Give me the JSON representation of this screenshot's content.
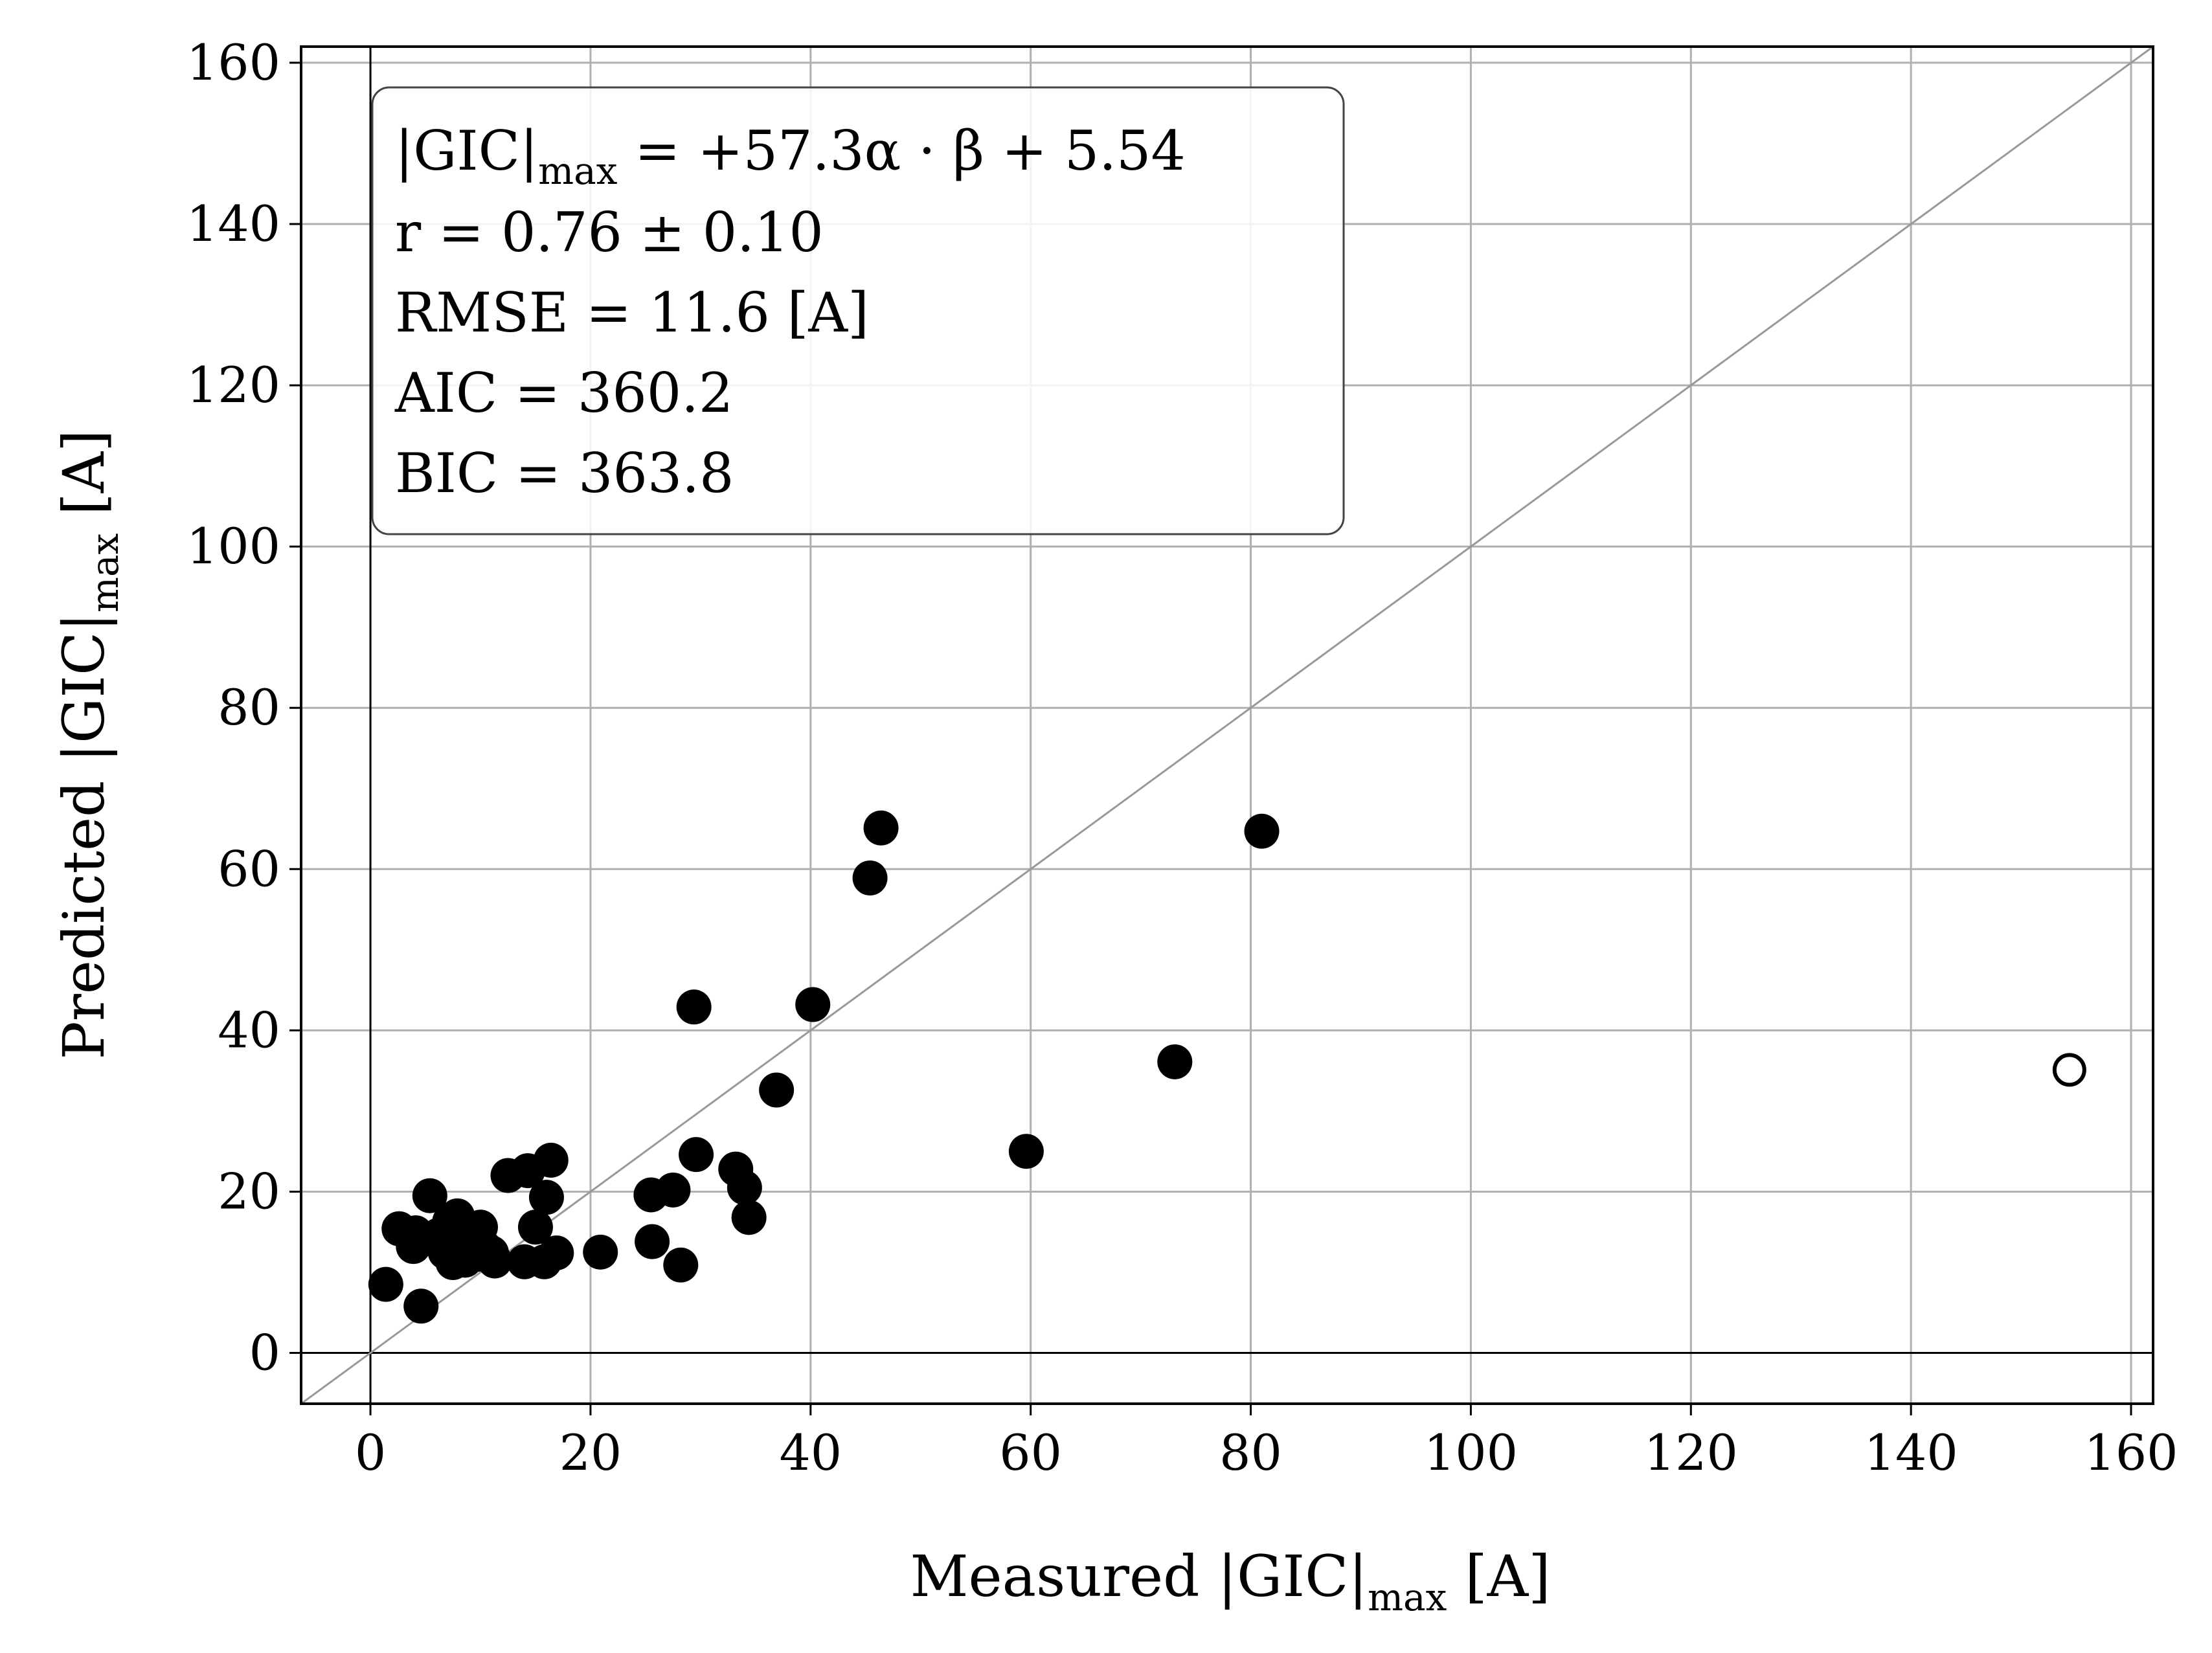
{
  "chart_data": {
    "type": "scatter",
    "xlabel": "Measured |GIC|max [A]",
    "ylabel": "Predicted |GIC|max [A]",
    "xlim": [
      -6.3,
      162
    ],
    "ylim": [
      -6.3,
      162
    ],
    "xticks": [
      "0",
      "20",
      "40",
      "60",
      "80",
      "100",
      "120",
      "140",
      "160"
    ],
    "yticks": [
      "0",
      "20",
      "40",
      "60",
      "80",
      "100",
      "120",
      "140",
      "160"
    ],
    "grid": true,
    "reference_line": "y = x",
    "zero_lines": true,
    "stats_box": {
      "equation": "|GIC|max = +57.3α · β + 5.54",
      "r": "r = 0.76 ± 0.10",
      "rmse": "RMSE = 11.6 [A]",
      "aic": "AIC = 360.2",
      "bic": "BIC = 363.8"
    },
    "series": [
      {
        "marker": "filled-circle",
        "color": "#000000",
        "points": [
          [
            1.4,
            8.5
          ],
          [
            2.6,
            15.4
          ],
          [
            3.9,
            13.2
          ],
          [
            4.1,
            14.9
          ],
          [
            4.6,
            5.8
          ],
          [
            5.4,
            19.5
          ],
          [
            6.2,
            14.6
          ],
          [
            6.8,
            12.5
          ],
          [
            7.2,
            16.3
          ],
          [
            7.5,
            11.2
          ],
          [
            7.9,
            17.0
          ],
          [
            8.3,
            13.8
          ],
          [
            8.6,
            11.5
          ],
          [
            9.2,
            14.7
          ],
          [
            9.6,
            12.2
          ],
          [
            10.0,
            15.6
          ],
          [
            10.4,
            13.0
          ],
          [
            11.0,
            12.4
          ],
          [
            11.3,
            11.4
          ],
          [
            12.5,
            22.0
          ],
          [
            14.0,
            11.3
          ],
          [
            14.3,
            22.6
          ],
          [
            15.0,
            15.6
          ],
          [
            15.8,
            11.3
          ],
          [
            16.0,
            19.3
          ],
          [
            16.4,
            23.9
          ],
          [
            16.9,
            12.4
          ],
          [
            20.9,
            12.5
          ],
          [
            25.5,
            19.6
          ],
          [
            25.6,
            13.8
          ],
          [
            27.5,
            20.2
          ],
          [
            28.2,
            10.9
          ],
          [
            29.4,
            42.9
          ],
          [
            29.6,
            24.6
          ],
          [
            33.2,
            22.8
          ],
          [
            34.0,
            20.5
          ],
          [
            34.4,
            16.8
          ],
          [
            36.9,
            32.6
          ],
          [
            40.2,
            43.2
          ],
          [
            45.4,
            58.9
          ],
          [
            46.4,
            65.1
          ],
          [
            59.6,
            25.0
          ],
          [
            73.1,
            36.1
          ],
          [
            81.0,
            64.7
          ]
        ]
      },
      {
        "marker": "open-circle",
        "color": "#000000",
        "points": [
          [
            154.4,
            35.1
          ]
        ]
      }
    ]
  }
}
